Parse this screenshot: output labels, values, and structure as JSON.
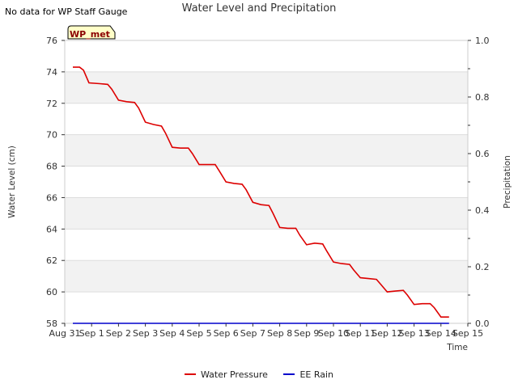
{
  "header": {
    "note": "No data for WP Staff Gauge",
    "title": "Water Level and Precipitation"
  },
  "chart_data": {
    "type": "line",
    "title": "Water Level and Precipitation",
    "xlabel": "Time",
    "ylabel": "Water Level (cm)",
    "y2label": "Precipitation",
    "station_box": "WP_met",
    "ylim": [
      58,
      76
    ],
    "y2lim": [
      0.0,
      1.0
    ],
    "yticks": [
      "58",
      "60",
      "62",
      "64",
      "66",
      "68",
      "70",
      "72",
      "74",
      "76"
    ],
    "y2ticks": [
      "0.0",
      "0.2",
      "0.4",
      "0.6",
      "0.8",
      "1.0"
    ],
    "xticks": [
      "Aug 31",
      "Sep 1",
      "Sep 2",
      "Sep 3",
      "Sep 4",
      "Sep 5",
      "Sep 6",
      "Sep 7",
      "Sep 8",
      "Sep 9",
      "Sep 10",
      "Sep 11",
      "Sep 12",
      "Sep 13",
      "Sep 14",
      "Sep 15"
    ],
    "grid": true,
    "legend_position": "bottom-center",
    "series": [
      {
        "name": "Water Pressure",
        "color": "#dd0000",
        "axis": "left",
        "x": [
          0.3,
          0.55,
          0.7,
          0.9,
          1.3,
          1.6,
          1.75,
          2.0,
          2.3,
          2.6,
          2.75,
          3.0,
          3.3,
          3.6,
          3.75,
          4.0,
          4.3,
          4.6,
          4.75,
          5.0,
          5.3,
          5.6,
          5.75,
          6.0,
          6.3,
          6.6,
          6.75,
          7.0,
          7.3,
          7.6,
          7.75,
          8.0,
          8.3,
          8.6,
          8.75,
          9.0,
          9.3,
          9.6,
          9.75,
          10.0,
          10.3,
          10.6,
          10.75,
          11.0,
          11.3,
          11.6,
          11.75,
          12.0,
          12.3,
          12.6,
          12.75,
          13.0,
          13.3,
          13.6,
          13.75,
          14.0,
          14.3
        ],
        "values": [
          74.3,
          74.3,
          74.1,
          73.3,
          73.25,
          73.2,
          72.9,
          72.2,
          72.1,
          72.05,
          71.7,
          70.8,
          70.65,
          70.55,
          70.1,
          69.2,
          69.15,
          69.15,
          68.8,
          68.1,
          68.1,
          68.1,
          67.7,
          67.0,
          66.9,
          66.85,
          66.5,
          65.7,
          65.55,
          65.5,
          65.0,
          64.1,
          64.05,
          64.05,
          63.6,
          63.0,
          63.1,
          63.05,
          62.6,
          61.9,
          61.8,
          61.75,
          61.4,
          60.9,
          60.85,
          60.8,
          60.5,
          60.0,
          60.05,
          60.1,
          59.8,
          59.2,
          59.25,
          59.25,
          59.0,
          58.4,
          58.4
        ]
      },
      {
        "name": "EE Rain",
        "color": "#0000cc",
        "axis": "right",
        "x": [
          0.3,
          14.3
        ],
        "values": [
          0.0,
          0.0
        ]
      }
    ]
  }
}
